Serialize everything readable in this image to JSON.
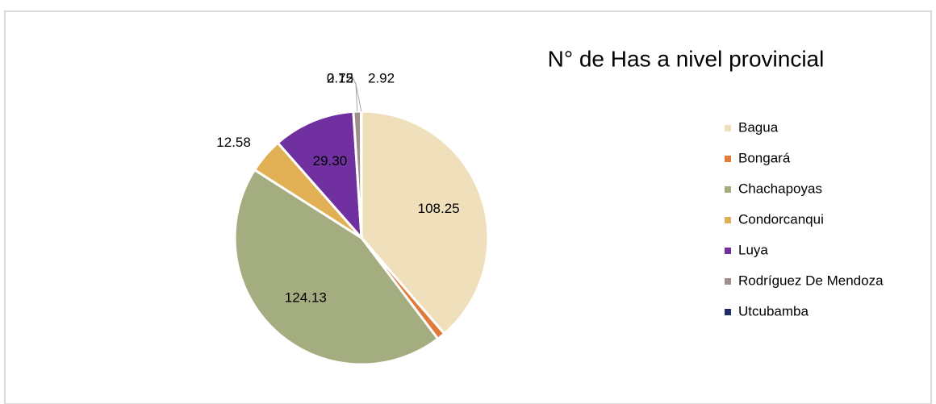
{
  "chart_data": {
    "type": "pie",
    "title": "N° de Has a nivel provincial",
    "categories": [
      "Bagua",
      "Bongará",
      "Chachapoyas",
      "Condorcanqui",
      "Luya",
      "Rodríguez De Mendoza",
      "Utcubamba"
    ],
    "values": [
      108.25,
      2.92,
      124.13,
      12.58,
      29.3,
      2.75,
      0.12
    ],
    "value_labels": [
      "108.25",
      "2.92",
      "124.13",
      "12.58",
      "29.30",
      "2.75",
      "0.12"
    ],
    "colors": [
      "#f0dfbb",
      "#e07b39",
      "#a4ad80",
      "#e1b054",
      "#7030a0",
      "#9e8e8e",
      "#1f2d6b"
    ],
    "legend": "right"
  }
}
